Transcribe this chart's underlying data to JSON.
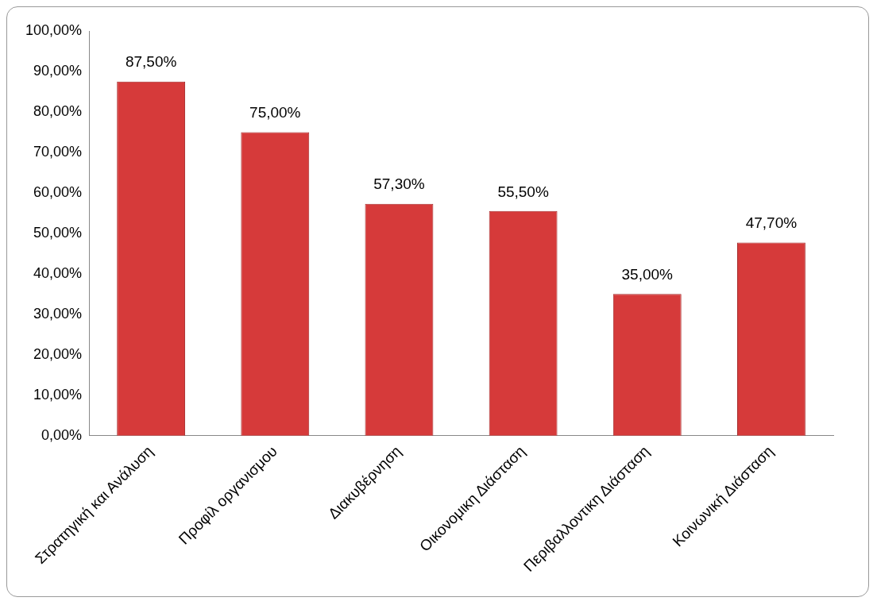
{
  "chart_data": {
    "type": "bar",
    "categories": [
      "Στρατηγική και Ανάλυση",
      "Προφίλ οργανισμου",
      "Διακυβέρνηση",
      "Οικονομικη Διάσταση",
      "Περιβαλλοντικη Διάσταση",
      "Κοινωνική Διάσταση"
    ],
    "values": [
      87.5,
      75,
      57.3,
      55.5,
      35,
      47.7
    ],
    "value_labels": [
      "87,50%",
      "75,00%",
      "57,30%",
      "55,50%",
      "35,00%",
      "47,70%"
    ],
    "color": "#d63a3a",
    "ylim": [
      0,
      100
    ],
    "yticks": [
      {
        "value": 0,
        "label": "0,00%"
      },
      {
        "value": 10,
        "label": "10,00%"
      },
      {
        "value": 20,
        "label": "20,00%"
      },
      {
        "value": 30,
        "label": "30,00%"
      },
      {
        "value": 40,
        "label": "40,00%"
      },
      {
        "value": 50,
        "label": "50,00%"
      },
      {
        "value": 60,
        "label": "60,00%"
      },
      {
        "value": 70,
        "label": "70,00%"
      },
      {
        "value": 80,
        "label": "80,00%"
      },
      {
        "value": 90,
        "label": "90,00%"
      },
      {
        "value": 100,
        "label": "100,00%"
      }
    ],
    "grid": false
  }
}
